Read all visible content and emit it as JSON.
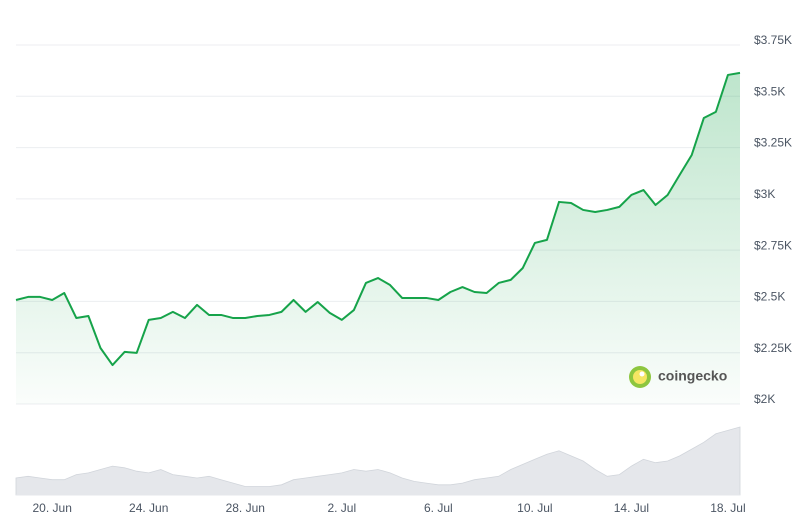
{
  "chart_data": {
    "type": "line",
    "brand": "coingecko",
    "categories": [
      null,
      null,
      null,
      "20. Jun",
      null,
      null,
      null,
      null,
      null,
      null,
      null,
      "24. Jun",
      null,
      null,
      null,
      null,
      null,
      null,
      null,
      "28. Jun",
      null,
      null,
      null,
      null,
      null,
      null,
      null,
      "2. Jul",
      null,
      null,
      null,
      null,
      null,
      null,
      null,
      "6. Jul",
      null,
      null,
      null,
      null,
      null,
      null,
      null,
      "10. Jul",
      null,
      null,
      null,
      null,
      null,
      null,
      null,
      "14. Jul",
      null,
      null,
      null,
      null,
      null,
      null,
      null,
      "18. Jul",
      null
    ],
    "values": [
      2507,
      2522,
      2522,
      2507,
      2541,
      2419,
      2429,
      2273,
      2190,
      2254,
      2249,
      2410,
      2419,
      2449,
      2419,
      2483,
      2434,
      2434,
      2419,
      2419,
      2429,
      2434,
      2449,
      2507,
      2449,
      2497,
      2444,
      2410,
      2458,
      2590,
      2614,
      2580,
      2517,
      2517,
      2517,
      2507,
      2546,
      2570,
      2546,
      2541,
      2590,
      2605,
      2663,
      2785,
      2800,
      2985,
      2980,
      2946,
      2936,
      2946,
      2961,
      3019,
      3043,
      2970,
      3019,
      3117,
      3214,
      3394,
      3424,
      3604,
      3614
    ],
    "color": "#16a34a",
    "ylim": [
      2000,
      3750
    ],
    "yticks": [
      {
        "value": 2000,
        "label": "$2K"
      },
      {
        "value": 2250,
        "label": "$2.25K"
      },
      {
        "value": 2500,
        "label": "$2.5K"
      },
      {
        "value": 2750,
        "label": "$2.75K"
      },
      {
        "value": 3000,
        "label": "$3K"
      },
      {
        "value": 3250,
        "label": "$3.25K"
      },
      {
        "value": 3500,
        "label": "$3.5K"
      },
      {
        "value": 3750,
        "label": "$3.75K"
      }
    ],
    "grid": true,
    "volume": {
      "color": "#e5e7eb",
      "ylim": [
        0,
        100
      ],
      "values": [
        20,
        22,
        20,
        18,
        18,
        24,
        26,
        30,
        34,
        32,
        28,
        26,
        30,
        24,
        22,
        20,
        22,
        18,
        14,
        10,
        10,
        10,
        12,
        18,
        20,
        22,
        24,
        26,
        30,
        28,
        30,
        26,
        20,
        16,
        14,
        12,
        12,
        14,
        18,
        20,
        22,
        30,
        36,
        42,
        48,
        52,
        46,
        40,
        30,
        22,
        24,
        34,
        42,
        38,
        40,
        46,
        54,
        62,
        72,
        76,
        80
      ]
    }
  }
}
